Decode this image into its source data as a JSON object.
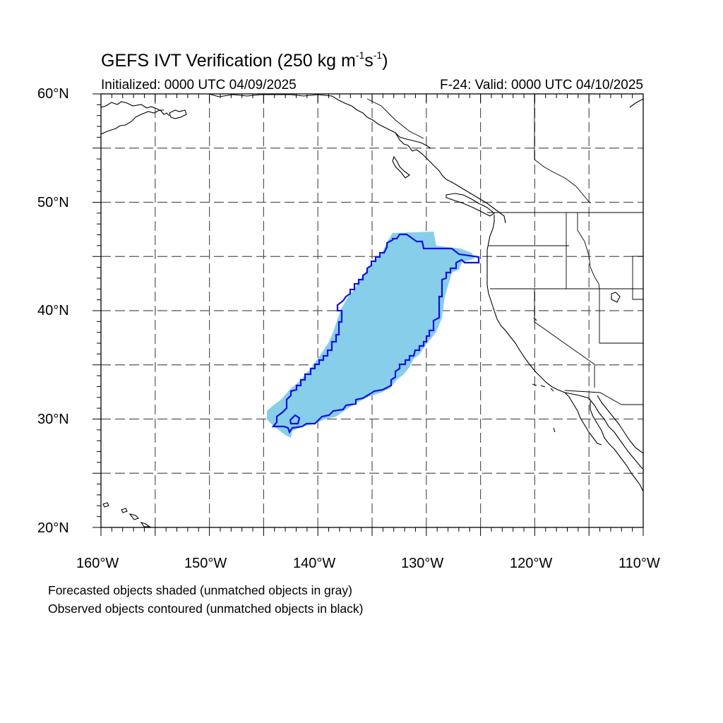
{
  "header": {
    "title_main": "GEFS IVT Verification (250 kg m",
    "title_exp1": "-1",
    "title_mid": "s",
    "title_exp2": "-1",
    "title_end": ")",
    "initialized": "Initialized: 0000 UTC 04/09/2025",
    "valid": "F-24: Valid: 0000 UTC 04/10/2025"
  },
  "axes": {
    "lat_ticks": [
      "60°N",
      "50°N",
      "40°N",
      "30°N",
      "20°N"
    ],
    "lon_ticks": [
      "160°W",
      "150°W",
      "140°W",
      "130°W",
      "120°W",
      "110°W"
    ],
    "lat_range": [
      20,
      60
    ],
    "lon_range": [
      -160,
      -110
    ],
    "grid_step_deg": 5,
    "grid_style": "dashed"
  },
  "legend": {
    "line1": "Forecasted objects shaded (unmatched objects in gray)",
    "line2": "Observed objects contoured (unmatched objects in black)"
  },
  "colors": {
    "forecast_fill": "#87CEEB",
    "observed_contour": "#1010E0",
    "coast": "#000000",
    "grid": "#555555"
  }
}
